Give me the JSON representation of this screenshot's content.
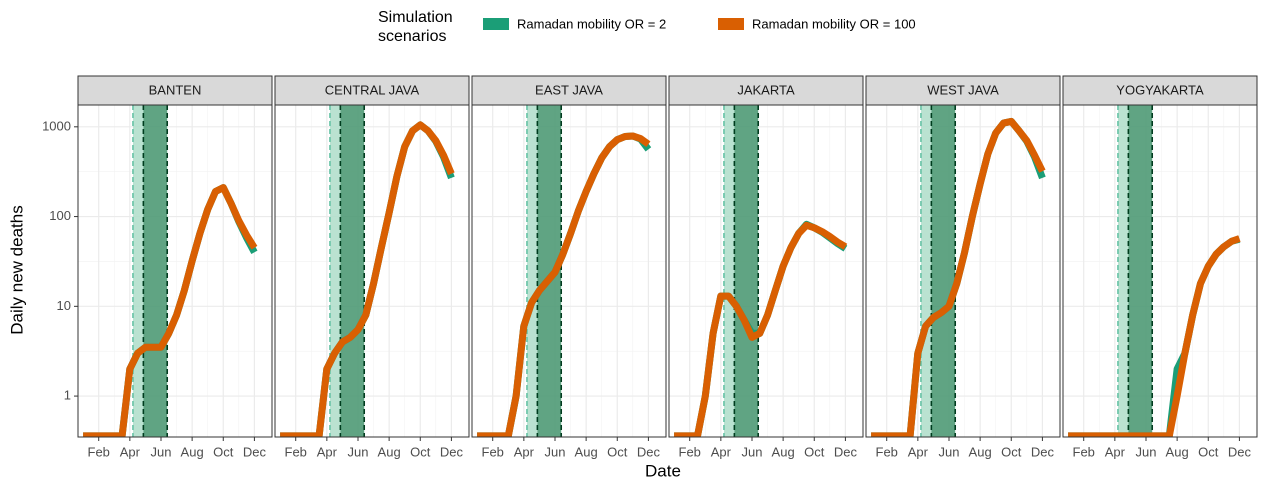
{
  "legend_title": "Simulation scenarios",
  "x_label": "Date",
  "y_label": "Daily new deaths",
  "chart_data": [
    {
      "type": "line",
      "title": "BANTEN",
      "x": [
        1,
        1.5,
        2,
        2.5,
        3,
        3.5,
        4,
        4.5,
        5,
        5.5,
        6,
        6.5,
        7,
        7.5,
        8,
        8.5,
        9,
        9.5,
        10,
        10.5,
        11,
        11.5,
        12
      ],
      "series": [
        {
          "name": "Ramadan mobility OR = 2",
          "color": "#1b9e77",
          "values": [
            0.36,
            0.36,
            0.36,
            0.36,
            0.36,
            0.36,
            2,
            3,
            3.5,
            3.5,
            3.5,
            5,
            8,
            15,
            32,
            65,
            120,
            190,
            210,
            140,
            88,
            58,
            40
          ]
        },
        {
          "name": "Ramadan mobility OR = 100",
          "color": "#d95f02",
          "values": [
            0.36,
            0.36,
            0.36,
            0.36,
            0.36,
            0.36,
            2,
            3,
            3.5,
            3.5,
            3.5,
            5,
            8,
            15,
            32,
            65,
            120,
            190,
            210,
            140,
            90,
            62,
            45
          ]
        }
      ],
      "bands": [
        {
          "start": 4.2,
          "end": 4.87,
          "color": "#b3dfcc",
          "edge": "#66c2a5"
        },
        {
          "start": 4.87,
          "end": 6.4,
          "color": "#4f9a76",
          "edge": "#003c1e"
        }
      ],
      "xlim": [
        0.67,
        13.13
      ],
      "xticks": [
        {
          "value": 2,
          "label": "Feb"
        },
        {
          "value": 4,
          "label": "Apr"
        },
        {
          "value": 6,
          "label": "Jun"
        },
        {
          "value": 8,
          "label": "Aug"
        },
        {
          "value": 10,
          "label": "Oct"
        },
        {
          "value": 12,
          "label": "Dec"
        }
      ],
      "ylim": [
        0.35,
        1750
      ],
      "yticks": [
        1,
        10,
        100,
        1000
      ],
      "log_y": true,
      "grid": true
    },
    {
      "type": "line",
      "title": "CENTRAL JAVA",
      "x": [
        1,
        1.5,
        2,
        2.5,
        3,
        3.5,
        4,
        4.5,
        5,
        5.5,
        6,
        6.5,
        7,
        7.5,
        8,
        8.5,
        9,
        9.5,
        10,
        10.5,
        11,
        11.5,
        12
      ],
      "series": [
        {
          "name": "Ramadan mobility OR = 2",
          "color": "#1b9e77",
          "values": [
            0.36,
            0.36,
            0.36,
            0.36,
            0.36,
            0.36,
            2,
            3,
            4,
            4.5,
            5.5,
            8,
            18,
            45,
            110,
            280,
            600,
            900,
            1050,
            900,
            690,
            460,
            270
          ]
        },
        {
          "name": "Ramadan mobility OR = 100",
          "color": "#d95f02",
          "values": [
            0.36,
            0.36,
            0.36,
            0.36,
            0.36,
            0.36,
            2,
            3,
            4,
            4.5,
            5.5,
            8,
            18,
            45,
            110,
            280,
            600,
            900,
            1050,
            900,
            700,
            480,
            300
          ]
        }
      ],
      "bands": [
        {
          "start": 4.2,
          "end": 4.87,
          "color": "#b3dfcc",
          "edge": "#66c2a5"
        },
        {
          "start": 4.87,
          "end": 6.4,
          "color": "#4f9a76",
          "edge": "#003c1e"
        }
      ],
      "xlim": [
        0.67,
        13.13
      ],
      "xticks": [
        {
          "value": 2,
          "label": "Feb"
        },
        {
          "value": 4,
          "label": "Apr"
        },
        {
          "value": 6,
          "label": "Jun"
        },
        {
          "value": 8,
          "label": "Aug"
        },
        {
          "value": 10,
          "label": "Oct"
        },
        {
          "value": 12,
          "label": "Dec"
        }
      ],
      "ylim": [
        0.35,
        1750
      ],
      "yticks": [
        1,
        10,
        100,
        1000
      ],
      "log_y": true,
      "grid": true
    },
    {
      "type": "line",
      "title": "EAST JAVA",
      "x": [
        1,
        1.5,
        2,
        2.5,
        3,
        3.5,
        4,
        4.5,
        5,
        5.5,
        6,
        6.5,
        7,
        7.5,
        8,
        8.5,
        9,
        9.5,
        10,
        10.5,
        11,
        11.5,
        12
      ],
      "series": [
        {
          "name": "Ramadan mobility OR = 2",
          "color": "#1b9e77",
          "values": [
            0.36,
            0.36,
            0.36,
            0.36,
            0.36,
            1,
            6,
            11,
            15,
            19,
            24,
            38,
            65,
            115,
            190,
            300,
            450,
            600,
            720,
            780,
            790,
            730,
            560
          ]
        },
        {
          "name": "Ramadan mobility OR = 100",
          "color": "#d95f02",
          "values": [
            0.36,
            0.36,
            0.36,
            0.36,
            0.36,
            1,
            6,
            11,
            15,
            19,
            24,
            38,
            65,
            115,
            190,
            300,
            450,
            600,
            720,
            780,
            790,
            740,
            640
          ]
        }
      ],
      "bands": [
        {
          "start": 4.2,
          "end": 4.87,
          "color": "#b3dfcc",
          "edge": "#66c2a5"
        },
        {
          "start": 4.87,
          "end": 6.4,
          "color": "#4f9a76",
          "edge": "#003c1e"
        }
      ],
      "xlim": [
        0.67,
        13.13
      ],
      "xticks": [
        {
          "value": 2,
          "label": "Feb"
        },
        {
          "value": 4,
          "label": "Apr"
        },
        {
          "value": 6,
          "label": "Jun"
        },
        {
          "value": 8,
          "label": "Aug"
        },
        {
          "value": 10,
          "label": "Oct"
        },
        {
          "value": 12,
          "label": "Dec"
        }
      ],
      "ylim": [
        0.35,
        1750
      ],
      "yticks": [
        1,
        10,
        100,
        1000
      ],
      "log_y": true,
      "grid": true
    },
    {
      "type": "line",
      "title": "JAKARTA",
      "x": [
        1,
        1.5,
        2,
        2.5,
        3,
        3.5,
        4,
        4.5,
        5,
        5.5,
        6,
        6.5,
        7,
        7.5,
        8,
        8.5,
        9,
        9.5,
        10,
        10.5,
        11,
        11.5,
        12
      ],
      "series": [
        {
          "name": "Ramadan mobility OR = 2",
          "color": "#1b9e77",
          "values": [
            0.36,
            0.36,
            0.36,
            0.36,
            1,
            5,
            13,
            13,
            10,
            7,
            5,
            5,
            8,
            15,
            28,
            45,
            65,
            82,
            75,
            67,
            58,
            50,
            44
          ]
        },
        {
          "name": "Ramadan mobility OR = 100",
          "color": "#d95f02",
          "values": [
            0.36,
            0.36,
            0.36,
            0.36,
            1,
            5,
            13,
            13,
            10,
            7,
            4.5,
            5,
            8,
            15,
            28,
            45,
            65,
            80,
            75,
            68,
            60,
            52,
            46
          ]
        }
      ],
      "bands": [
        {
          "start": 4.2,
          "end": 4.87,
          "color": "#b3dfcc",
          "edge": "#66c2a5"
        },
        {
          "start": 4.87,
          "end": 6.4,
          "color": "#4f9a76",
          "edge": "#003c1e"
        }
      ],
      "xlim": [
        0.67,
        13.13
      ],
      "xticks": [
        {
          "value": 2,
          "label": "Feb"
        },
        {
          "value": 4,
          "label": "Apr"
        },
        {
          "value": 6,
          "label": "Jun"
        },
        {
          "value": 8,
          "label": "Aug"
        },
        {
          "value": 10,
          "label": "Oct"
        },
        {
          "value": 12,
          "label": "Dec"
        }
      ],
      "ylim": [
        0.35,
        1750
      ],
      "yticks": [
        1,
        10,
        100,
        1000
      ],
      "log_y": true,
      "grid": true
    },
    {
      "type": "line",
      "title": "WEST JAVA",
      "x": [
        1,
        1.5,
        2,
        2.5,
        3,
        3.5,
        4,
        4.5,
        5,
        5.5,
        6,
        6.5,
        7,
        7.5,
        8,
        8.5,
        9,
        9.5,
        10,
        10.5,
        11,
        11.5,
        12
      ],
      "series": [
        {
          "name": "Ramadan mobility OR = 2",
          "color": "#1b9e77",
          "values": [
            0.36,
            0.36,
            0.36,
            0.36,
            0.36,
            0.36,
            3,
            6,
            7.5,
            8.5,
            10,
            18,
            40,
            100,
            230,
            500,
            850,
            1100,
            1150,
            900,
            690,
            460,
            270
          ]
        },
        {
          "name": "Ramadan mobility OR = 100",
          "color": "#d95f02",
          "values": [
            0.36,
            0.36,
            0.36,
            0.36,
            0.36,
            0.36,
            3,
            6,
            7.5,
            8.5,
            10,
            18,
            40,
            100,
            230,
            500,
            850,
            1100,
            1150,
            900,
            700,
            480,
            320
          ]
        }
      ],
      "bands": [
        {
          "start": 4.2,
          "end": 4.87,
          "color": "#b3dfcc",
          "edge": "#66c2a5"
        },
        {
          "start": 4.87,
          "end": 6.4,
          "color": "#4f9a76",
          "edge": "#003c1e"
        }
      ],
      "xlim": [
        0.67,
        13.13
      ],
      "xticks": [
        {
          "value": 2,
          "label": "Feb"
        },
        {
          "value": 4,
          "label": "Apr"
        },
        {
          "value": 6,
          "label": "Jun"
        },
        {
          "value": 8,
          "label": "Aug"
        },
        {
          "value": 10,
          "label": "Oct"
        },
        {
          "value": 12,
          "label": "Dec"
        }
      ],
      "ylim": [
        0.35,
        1750
      ],
      "yticks": [
        1,
        10,
        100,
        1000
      ],
      "log_y": true,
      "grid": true
    },
    {
      "type": "line",
      "title": "YOGYAKARTA",
      "x": [
        1,
        1.5,
        2,
        2.5,
        3,
        3.5,
        4,
        4.5,
        5,
        5.5,
        6,
        6.5,
        7,
        7.5,
        8,
        8.5,
        9,
        9.5,
        10,
        10.5,
        11,
        11.5,
        12
      ],
      "series": [
        {
          "name": "Ramadan mobility OR = 2",
          "color": "#1b9e77",
          "values": [
            0.36,
            0.36,
            0.36,
            0.36,
            0.36,
            0.36,
            0.36,
            0.36,
            0.36,
            0.36,
            0.36,
            0.36,
            0.36,
            0.36,
            2,
            3,
            8,
            18,
            28,
            38,
            46,
            53,
            56
          ]
        },
        {
          "name": "Ramadan mobility OR = 100",
          "color": "#d95f02",
          "values": [
            0.36,
            0.36,
            0.36,
            0.36,
            0.36,
            0.36,
            0.36,
            0.36,
            0.36,
            0.36,
            0.36,
            0.36,
            0.36,
            0.36,
            1,
            3,
            8,
            18,
            28,
            38,
            46,
            53,
            57
          ]
        }
      ],
      "bands": [
        {
          "start": 4.2,
          "end": 4.87,
          "color": "#b3dfcc",
          "edge": "#66c2a5"
        },
        {
          "start": 4.87,
          "end": 6.4,
          "color": "#4f9a76",
          "edge": "#003c1e"
        }
      ],
      "xlim": [
        0.67,
        13.13
      ],
      "xticks": [
        {
          "value": 2,
          "label": "Feb"
        },
        {
          "value": 4,
          "label": "Apr"
        },
        {
          "value": 6,
          "label": "Jun"
        },
        {
          "value": 8,
          "label": "Aug"
        },
        {
          "value": 10,
          "label": "Oct"
        },
        {
          "value": 12,
          "label": "Dec"
        }
      ],
      "ylim": [
        0.35,
        1750
      ],
      "yticks": [
        1,
        10,
        100,
        1000
      ],
      "log_y": true,
      "grid": true
    }
  ]
}
